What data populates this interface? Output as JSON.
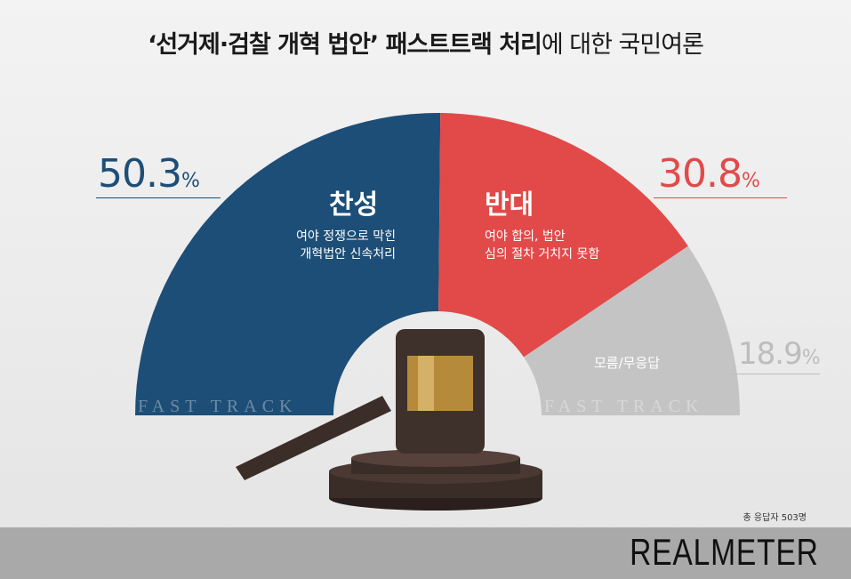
{
  "title": {
    "part1": "‘선거제·검찰 개혁 법안’ 패스트트랙 처리",
    "part2": "에 대한 국민여론"
  },
  "chart_data": {
    "type": "pie",
    "subtype": "semi-donut",
    "categories": [
      "찬성",
      "반대",
      "모름/무응답"
    ],
    "values": [
      50.3,
      30.8,
      18.9
    ],
    "unit": "%",
    "colors": [
      "#1d4e77",
      "#e24a4a",
      "#c4c4c4"
    ],
    "descriptions": [
      "여야 정쟁으로 막힌\n개혁법안 신속처리",
      "여야 합의, 법안\n심의 절차 거치지 못함",
      ""
    ],
    "labels": {
      "yes": "50.3",
      "no": "30.8",
      "dk": "18.9",
      "unit": "%"
    }
  },
  "desc": {
    "yes1": "여야 정쟁으로 막힌",
    "yes2": "개혁법안 신속처리",
    "no1": "여야 합의, 법안",
    "no2": "심의 절차 거치지 못함"
  },
  "watermark": "FAST TRACK",
  "respondents": "총 응답자 503명",
  "logo": "REALMETER"
}
